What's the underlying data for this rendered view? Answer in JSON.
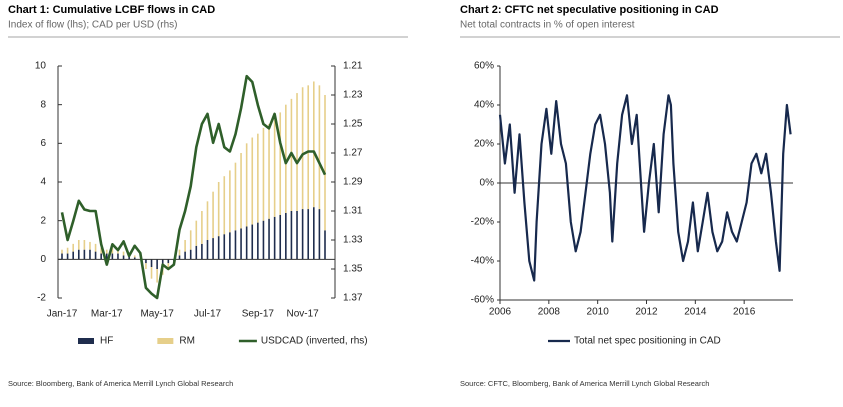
{
  "chart_data": [
    {
      "type": "bar",
      "title": "Chart 1: Cumulative LCBF flows in CAD",
      "subtitle": "Index of flow (lhs); CAD per USD (rhs)",
      "source": "Source: Bloomberg, Bank of America Merrill Lynch Global Research",
      "categories": [
        "Jan-17",
        null,
        null,
        null,
        null,
        null,
        null,
        null,
        "Mar-17",
        null,
        null,
        null,
        null,
        null,
        null,
        null,
        null,
        "May-17",
        null,
        null,
        null,
        null,
        null,
        null,
        null,
        null,
        "Jul-17",
        null,
        null,
        null,
        null,
        null,
        null,
        null,
        null,
        "Sep-17",
        null,
        null,
        null,
        null,
        null,
        null,
        null,
        "Nov-17",
        null,
        null,
        null,
        null
      ],
      "series": [
        {
          "name": "HF",
          "color": "#1f2d4d",
          "values": [
            0.3,
            0.3,
            0.4,
            0.5,
            0.5,
            0.5,
            0.4,
            0.3,
            0.3,
            0.3,
            0.3,
            0.2,
            0.2,
            0.1,
            0.0,
            -0.2,
            -0.4,
            -0.5,
            -0.3,
            -0.2,
            -0.1,
            0.2,
            0.4,
            0.5,
            0.7,
            0.8,
            1.0,
            1.1,
            1.2,
            1.3,
            1.4,
            1.5,
            1.6,
            1.7,
            1.8,
            1.9,
            2.0,
            2.1,
            2.2,
            2.3,
            2.4,
            2.5,
            2.5,
            2.6,
            2.6,
            2.7,
            2.6,
            1.5
          ]
        },
        {
          "name": "RM",
          "color": "#e6cf8a",
          "values": [
            0.2,
            0.3,
            0.4,
            0.5,
            0.5,
            0.4,
            0.4,
            0.3,
            0.2,
            0.3,
            0.2,
            0.2,
            0.1,
            0.1,
            0.0,
            -0.3,
            -0.6,
            -0.7,
            -0.5,
            -0.3,
            -0.1,
            0.3,
            0.6,
            1.0,
            1.3,
            1.7,
            2.0,
            2.4,
            2.8,
            3.0,
            3.2,
            3.5,
            3.9,
            4.3,
            4.5,
            4.6,
            4.8,
            4.9,
            5.1,
            5.3,
            5.6,
            5.8,
            6.1,
            6.3,
            6.4,
            6.5,
            6.4,
            7.0
          ]
        },
        {
          "name": "USDCAD (inverted, rhs)",
          "color": "#2f5f2a",
          "axis": "y2",
          "values": [
            1.311,
            1.33,
            1.317,
            1.303,
            1.309,
            1.31,
            1.31,
            1.333,
            1.347,
            1.333,
            1.337,
            1.331,
            1.341,
            1.334,
            1.339,
            1.363,
            1.367,
            1.37,
            1.347,
            1.35,
            1.347,
            1.323,
            1.31,
            1.293,
            1.266,
            1.25,
            1.243,
            1.263,
            1.25,
            1.266,
            1.269,
            1.257,
            1.239,
            1.217,
            1.221,
            1.237,
            1.25,
            1.253,
            1.243,
            1.263,
            1.277,
            1.27,
            1.277,
            1.271,
            1.269,
            1.269,
            1.277,
            1.285
          ]
        }
      ],
      "ylim": [
        -2,
        10
      ],
      "yticks": [
        -2,
        0,
        2,
        4,
        6,
        8,
        10
      ],
      "y2lim": [
        1.21,
        1.37
      ],
      "y2ticks": [
        1.21,
        1.23,
        1.25,
        1.27,
        1.29,
        1.31,
        1.33,
        1.35,
        1.37
      ],
      "y2_inverted": true,
      "stacked": true,
      "grid": false
    },
    {
      "type": "line",
      "title": "Chart 2: CFTC net speculative positioning in CAD",
      "subtitle": "Net total contracts in % of open interest",
      "source": "Source: CFTC, Bloomberg, Bank of America Merrill Lynch Global Research",
      "x": [
        2006.0,
        2006.2,
        2006.4,
        2006.6,
        2006.8,
        2007.0,
        2007.2,
        2007.4,
        2007.5,
        2007.7,
        2007.9,
        2008.1,
        2008.3,
        2008.5,
        2008.7,
        2008.9,
        2009.1,
        2009.3,
        2009.5,
        2009.7,
        2009.9,
        2010.1,
        2010.3,
        2010.5,
        2010.6,
        2010.8,
        2011.0,
        2011.2,
        2011.4,
        2011.6,
        2011.8,
        2011.9,
        2012.1,
        2012.3,
        2012.5,
        2012.7,
        2012.9,
        2013.0,
        2013.1,
        2013.3,
        2013.5,
        2013.7,
        2013.9,
        2014.1,
        2014.3,
        2014.5,
        2014.7,
        2014.9,
        2015.1,
        2015.3,
        2015.5,
        2015.7,
        2015.9,
        2016.1,
        2016.3,
        2016.5,
        2016.7,
        2016.9,
        2017.1,
        2017.3,
        2017.45,
        2017.6,
        2017.75,
        2017.9
      ],
      "series": [
        {
          "name": "Total net spec positioning in CAD",
          "color": "#17294d",
          "values": [
            35,
            10,
            30,
            -5,
            25,
            -10,
            -40,
            -50,
            -20,
            20,
            38,
            15,
            42,
            20,
            10,
            -20,
            -35,
            -25,
            -5,
            15,
            30,
            35,
            20,
            -5,
            -30,
            10,
            35,
            45,
            20,
            35,
            -5,
            -25,
            0,
            20,
            -15,
            25,
            45,
            40,
            10,
            -25,
            -40,
            -30,
            -10,
            -35,
            -20,
            -5,
            -25,
            -35,
            -30,
            -15,
            -25,
            -30,
            -20,
            -10,
            10,
            15,
            5,
            15,
            -5,
            -30,
            -45,
            15,
            40,
            25
          ]
        }
      ],
      "xlim": [
        2006,
        2018
      ],
      "xticks": [
        2006,
        2008,
        2010,
        2012,
        2014,
        2016
      ],
      "ylim": [
        -60,
        60
      ],
      "yticks": [
        {
          "value": -60,
          "label": "-60%"
        },
        {
          "value": -40,
          "label": "-40%"
        },
        {
          "value": -20,
          "label": "-20%"
        },
        {
          "value": 0,
          "label": "0%"
        },
        {
          "value": 20,
          "label": "20%"
        },
        {
          "value": 40,
          "label": "40%"
        },
        {
          "value": 60,
          "label": "60%"
        }
      ],
      "grid": false
    }
  ]
}
